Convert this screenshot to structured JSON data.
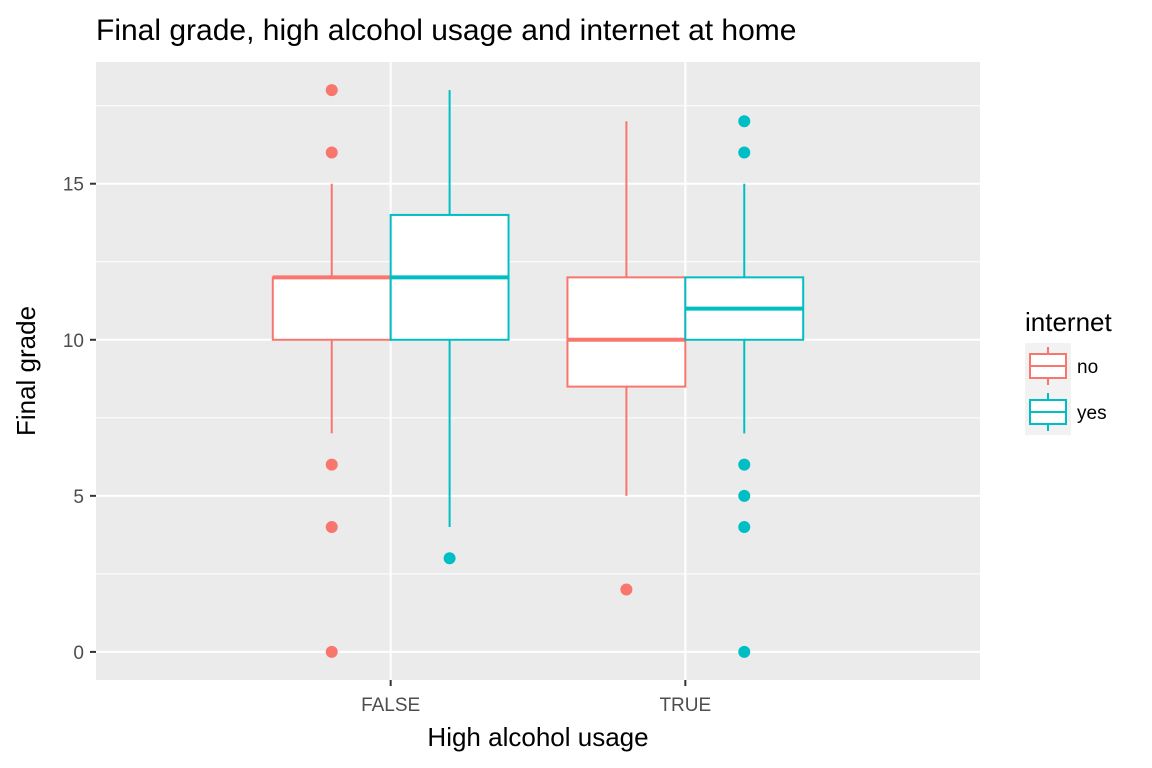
{
  "chart_data": {
    "type": "boxplot",
    "title": "Final grade, high alcohol usage and internet at home",
    "xlabel": "High alcohol usage",
    "ylabel": "Final grade",
    "categories": [
      "FALSE",
      "TRUE"
    ],
    "ylim": [
      -0.9,
      18.9
    ],
    "yticks": [
      0,
      5,
      10,
      15
    ],
    "ytick_labels": [
      "0",
      "5",
      "10",
      "15"
    ],
    "grid": true,
    "legend": {
      "title": "internet",
      "position": "right",
      "entries": [
        "no",
        "yes"
      ]
    },
    "series": [
      {
        "name": "no",
        "color": "#F8766D",
        "boxes": [
          {
            "category": "FALSE",
            "whisker_low": 7,
            "q1": 10,
            "median": 12,
            "q3": 12,
            "whisker_high": 15,
            "outliers": [
              0,
              4,
              6,
              16,
              18
            ]
          },
          {
            "category": "TRUE",
            "whisker_low": 5,
            "q1": 8.5,
            "median": 10,
            "q3": 12,
            "whisker_high": 17,
            "outliers": [
              2
            ]
          }
        ]
      },
      {
        "name": "yes",
        "color": "#00BFC4",
        "boxes": [
          {
            "category": "FALSE",
            "whisker_low": 4,
            "q1": 10,
            "median": 12,
            "q3": 14,
            "whisker_high": 18,
            "outliers": [
              3
            ]
          },
          {
            "category": "TRUE",
            "whisker_low": 7,
            "q1": 10,
            "median": 11,
            "q3": 12,
            "whisker_high": 15,
            "outliers": [
              0,
              4,
              5,
              6,
              16,
              17
            ]
          }
        ]
      }
    ]
  }
}
